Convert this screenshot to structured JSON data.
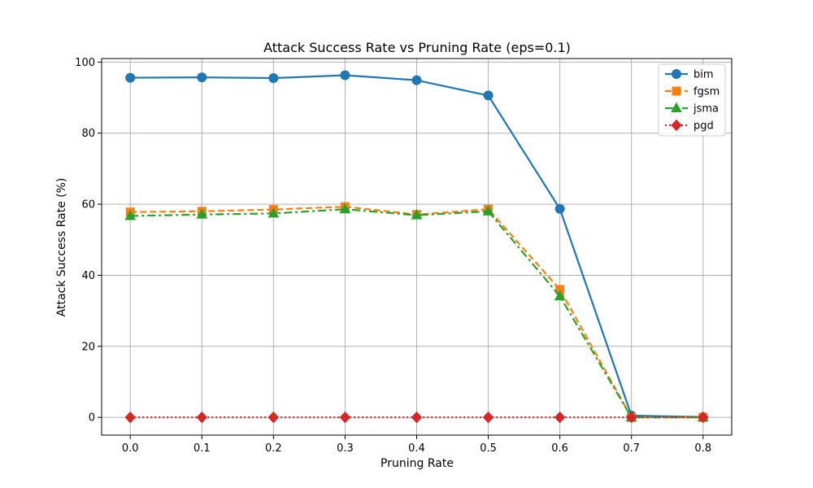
{
  "chart_data": {
    "type": "line",
    "title": "Attack Success Rate vs Pruning Rate (eps=0.1)",
    "xlabel": "Pruning Rate",
    "ylabel": "Attack Success Rate (%)",
    "x": [
      0.0,
      0.1,
      0.2,
      0.3,
      0.4,
      0.5,
      0.6,
      0.7,
      0.8
    ],
    "x_tick_labels": [
      "0.0",
      "0.1",
      "0.2",
      "0.3",
      "0.4",
      "0.5",
      "0.6",
      "0.7",
      "0.8"
    ],
    "y_ticks": [
      0,
      20,
      40,
      60,
      80,
      100
    ],
    "y_tick_labels": [
      "0",
      "20",
      "40",
      "60",
      "80",
      "100"
    ],
    "xlim": [
      -0.04,
      0.84
    ],
    "ylim": [
      -5,
      101
    ],
    "grid": true,
    "legend_position": "top-right",
    "series": [
      {
        "name": "bim",
        "color": "#1f77b4",
        "marker": "circle",
        "linestyle": "solid",
        "values": [
          95.6,
          95.7,
          95.5,
          96.3,
          94.9,
          90.6,
          58.7,
          0.5,
          0.1
        ]
      },
      {
        "name": "fgsm",
        "color": "#ff7f0e",
        "marker": "square",
        "linestyle": "dashed",
        "values": [
          57.8,
          58.0,
          58.5,
          59.3,
          57.1,
          58.6,
          36.0,
          0.0,
          0.0
        ]
      },
      {
        "name": "jsma",
        "color": "#2ca02c",
        "marker": "triangle",
        "linestyle": "dashdot",
        "values": [
          56.7,
          57.1,
          57.4,
          58.6,
          56.9,
          58.0,
          34.1,
          0.0,
          0.0
        ]
      },
      {
        "name": "pgd",
        "color": "#d62728",
        "marker": "diamond",
        "linestyle": "dotted",
        "values": [
          0.0,
          0.0,
          0.0,
          0.0,
          0.0,
          0.0,
          0.0,
          0.0,
          0.0
        ]
      }
    ]
  }
}
